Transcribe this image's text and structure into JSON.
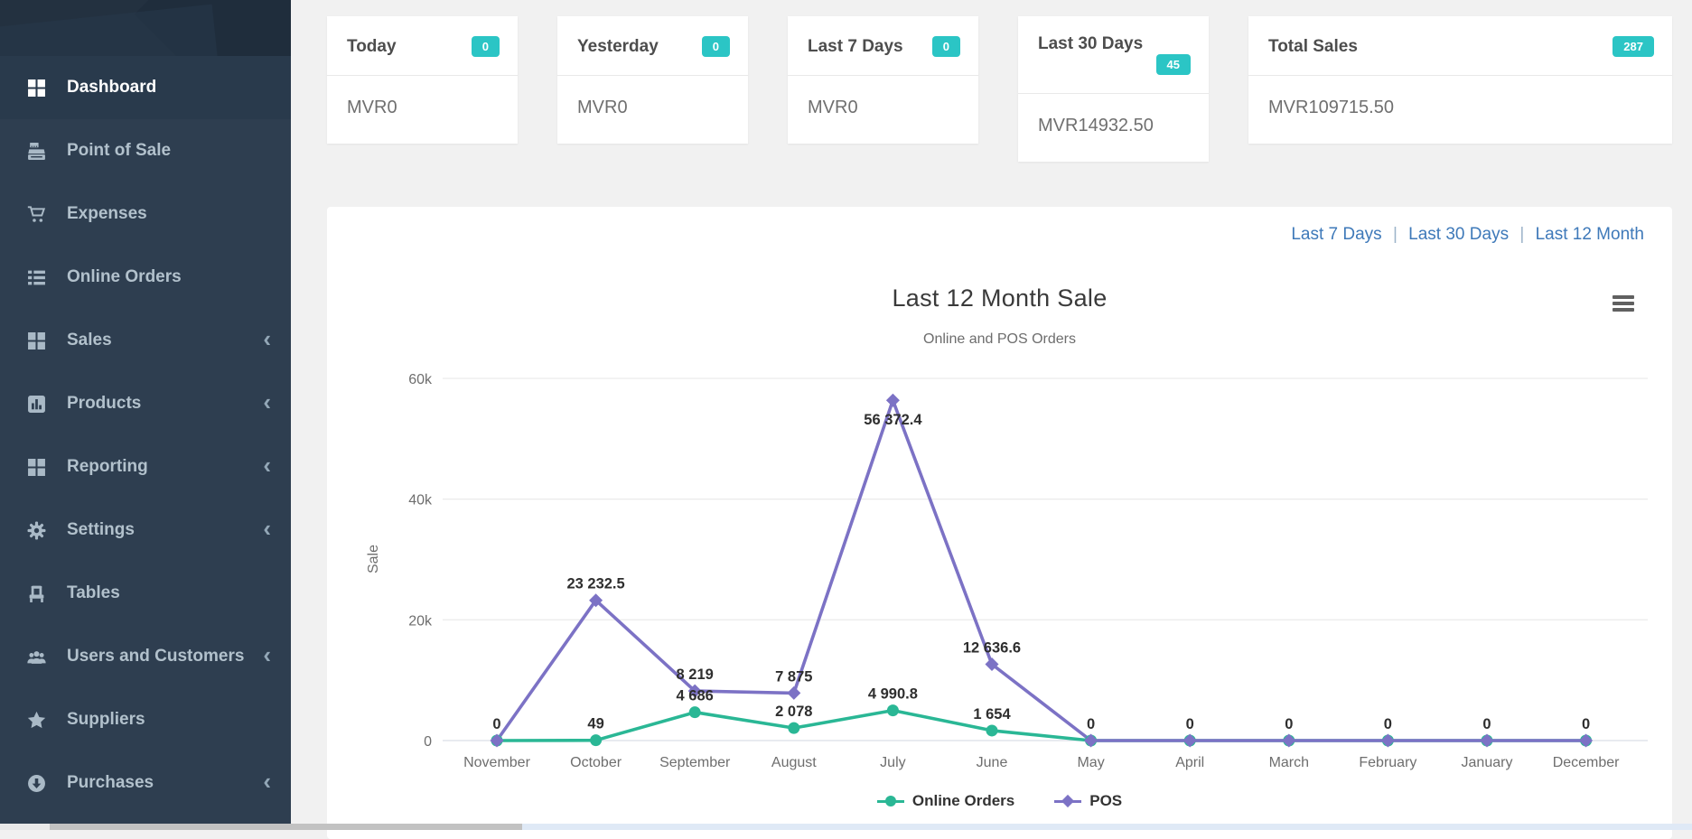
{
  "sidebar": {
    "items": [
      {
        "label": "Dashboard",
        "icon": "grid-icon",
        "active": true,
        "chevron": false
      },
      {
        "label": "Point of Sale",
        "icon": "cash-register-icon",
        "active": false,
        "chevron": false
      },
      {
        "label": "Expenses",
        "icon": "cart-icon",
        "active": false,
        "chevron": false
      },
      {
        "label": "Online Orders",
        "icon": "list-icon",
        "active": false,
        "chevron": false
      },
      {
        "label": "Sales",
        "icon": "grid-icon",
        "active": false,
        "chevron": true
      },
      {
        "label": "Products",
        "icon": "bar-chart-icon",
        "active": false,
        "chevron": true
      },
      {
        "label": "Reporting",
        "icon": "grid-icon",
        "active": false,
        "chevron": true
      },
      {
        "label": "Settings",
        "icon": "gear-icon",
        "active": false,
        "chevron": true
      },
      {
        "label": "Tables",
        "icon": "chair-icon",
        "active": false,
        "chevron": false
      },
      {
        "label": "Users and Customers",
        "icon": "users-icon",
        "active": false,
        "chevron": true
      },
      {
        "label": "Suppliers",
        "icon": "star-icon",
        "active": false,
        "chevron": false
      },
      {
        "label": "Purchases",
        "icon": "arrow-circle-down-icon",
        "active": false,
        "chevron": true
      }
    ]
  },
  "summary_cards": [
    {
      "title": "Today",
      "badge": "0",
      "value": "MVR0",
      "wrapped": false,
      "wide": false
    },
    {
      "title": "Yesterday",
      "badge": "0",
      "value": "MVR0",
      "wrapped": false,
      "wide": false
    },
    {
      "title": "Last 7 Days",
      "badge": "0",
      "value": "MVR0",
      "wrapped": false,
      "wide": false
    },
    {
      "title": "Last 30 Days",
      "badge": "45",
      "value": "MVR14932.50",
      "wrapped": true,
      "wide": false
    },
    {
      "title": "Total Sales",
      "badge": "287",
      "value": "MVR109715.50",
      "wrapped": false,
      "wide": true
    }
  ],
  "chart_panel": {
    "range_links": [
      "Last 7 Days",
      "Last 30 Days",
      "Last 12 Month"
    ],
    "link_separator": "|",
    "menu_icon": "hamburger-menu-icon"
  },
  "chart_data": {
    "type": "line",
    "title": "Last 12 Month Sale",
    "subtitle": "Online and POS Orders",
    "ylabel": "Sale",
    "xlabel": "",
    "categories": [
      "November",
      "October",
      "September",
      "August",
      "July",
      "June",
      "May",
      "April",
      "March",
      "February",
      "January",
      "December"
    ],
    "series": [
      {
        "name": "Online Orders",
        "color": "#2ab795",
        "marker": "circle",
        "values": [
          0,
          49,
          4686,
          2078,
          4990.8,
          1654,
          0,
          0,
          0,
          0,
          0,
          0
        ],
        "labels": [
          "0",
          "49",
          "4 686",
          "2 078",
          "4 990.8",
          "1 654",
          "0",
          "0",
          "0",
          "0",
          "0",
          "0"
        ]
      },
      {
        "name": "POS",
        "color": "#7c72c5",
        "marker": "diamond",
        "values": [
          0,
          23232.5,
          8219,
          7875,
          56372.4,
          12636.6,
          0,
          0,
          0,
          0,
          0,
          0
        ],
        "labels": [
          "0",
          "23 232.5",
          "8 219",
          "7 875",
          "56 372.4",
          "12 636.6",
          "0",
          "0",
          "0",
          "0",
          "0",
          "0"
        ]
      }
    ],
    "ylim": [
      0,
      60000
    ],
    "yticks": [
      {
        "v": 0,
        "label": "0"
      },
      {
        "v": 20000,
        "label": "20k"
      },
      {
        "v": 40000,
        "label": "40k"
      },
      {
        "v": 60000,
        "label": "60k"
      }
    ],
    "grid": true,
    "legend_position": "bottom"
  },
  "colors": {
    "sidebar_bg": "#2e3e50",
    "sidebar_active_bg": "#293a4c",
    "badge_teal": "#2bc5c5",
    "link_blue": "#3e79b9",
    "online_orders": "#2ab795",
    "pos": "#7c72c5"
  }
}
